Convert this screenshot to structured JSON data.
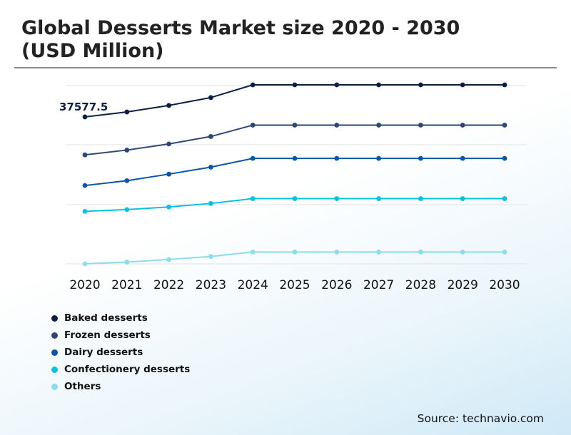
{
  "title_line1": "Global Desserts Market size 2020 - 2030",
  "title_line2": "(USD Million)",
  "source": "Source: technavio.com",
  "chart_data": {
    "type": "line",
    "title": "Global Desserts Market size 2020 - 2030 (USD Million)",
    "x": [
      "2020",
      "2021",
      "2022",
      "2023",
      "2024",
      "2025",
      "2026",
      "2027",
      "2028",
      "2029",
      "2030"
    ],
    "xlabel": "",
    "ylabel": "",
    "grid": true,
    "legend_position": "bottom-left",
    "annotation": {
      "series": "Baked desserts",
      "x": "2020",
      "text": "37577.5"
    },
    "series": [
      {
        "name": "Baked desserts",
        "color": "#0b1f45",
        "values": [
          37577.5,
          38700,
          40200,
          42000,
          44900,
          44900,
          44900,
          44900,
          44900,
          44900,
          44900
        ]
      },
      {
        "name": "Frozen desserts",
        "color": "#2e4675",
        "values": [
          28900,
          30000,
          31400,
          33100,
          35700,
          35700,
          35700,
          35700,
          35700,
          35700,
          35700
        ]
      },
      {
        "name": "Dairy desserts",
        "color": "#0d55a8",
        "values": [
          21900,
          23000,
          24500,
          26100,
          28100,
          28100,
          28100,
          28100,
          28100,
          28100,
          28100
        ]
      },
      {
        "name": "Confectionery desserts",
        "color": "#0ac2e0",
        "values": [
          16000,
          16400,
          17000,
          17800,
          18900,
          18900,
          18900,
          18900,
          18900,
          18900,
          18900
        ]
      },
      {
        "name": "Others",
        "color": "#8cdcee",
        "values": [
          4000,
          4400,
          5000,
          5700,
          6700,
          6700,
          6700,
          6700,
          6700,
          6700,
          6700
        ]
      }
    ]
  }
}
